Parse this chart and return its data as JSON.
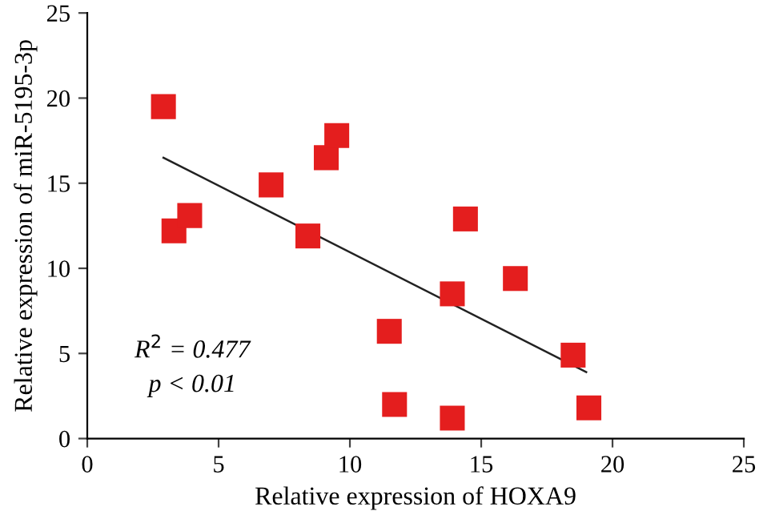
{
  "chart_data": {
    "type": "scatter",
    "xlabel": "Relative expression of HOXA9",
    "ylabel": "Relative expression of miR-5195-3p",
    "xlim": [
      0,
      25
    ],
    "ylim": [
      0,
      25
    ],
    "xticks": [
      0,
      5,
      10,
      15,
      20,
      25
    ],
    "yticks": [
      0,
      5,
      10,
      15,
      20,
      25
    ],
    "grid": false,
    "legend": false,
    "series": [
      {
        "marker": "square",
        "color": "#e41e1e",
        "x": [
          2.9,
          3.3,
          3.9,
          7.0,
          8.4,
          9.1,
          9.5,
          11.5,
          11.7,
          13.9,
          13.9,
          14.4,
          16.3,
          18.5,
          19.1
        ],
        "values": [
          19.5,
          12.2,
          13.1,
          14.9,
          11.9,
          16.5,
          17.8,
          6.3,
          2.0,
          8.5,
          1.2,
          12.9,
          9.4,
          4.9,
          1.8
        ]
      },
      {
        "type": "line",
        "color": "#222222",
        "x": [
          2.9,
          19.0
        ],
        "values": [
          16.5,
          3.9
        ]
      }
    ],
    "annotations": [
      "R$^{2}$ = 0.477",
      "p < 0.01"
    ]
  }
}
